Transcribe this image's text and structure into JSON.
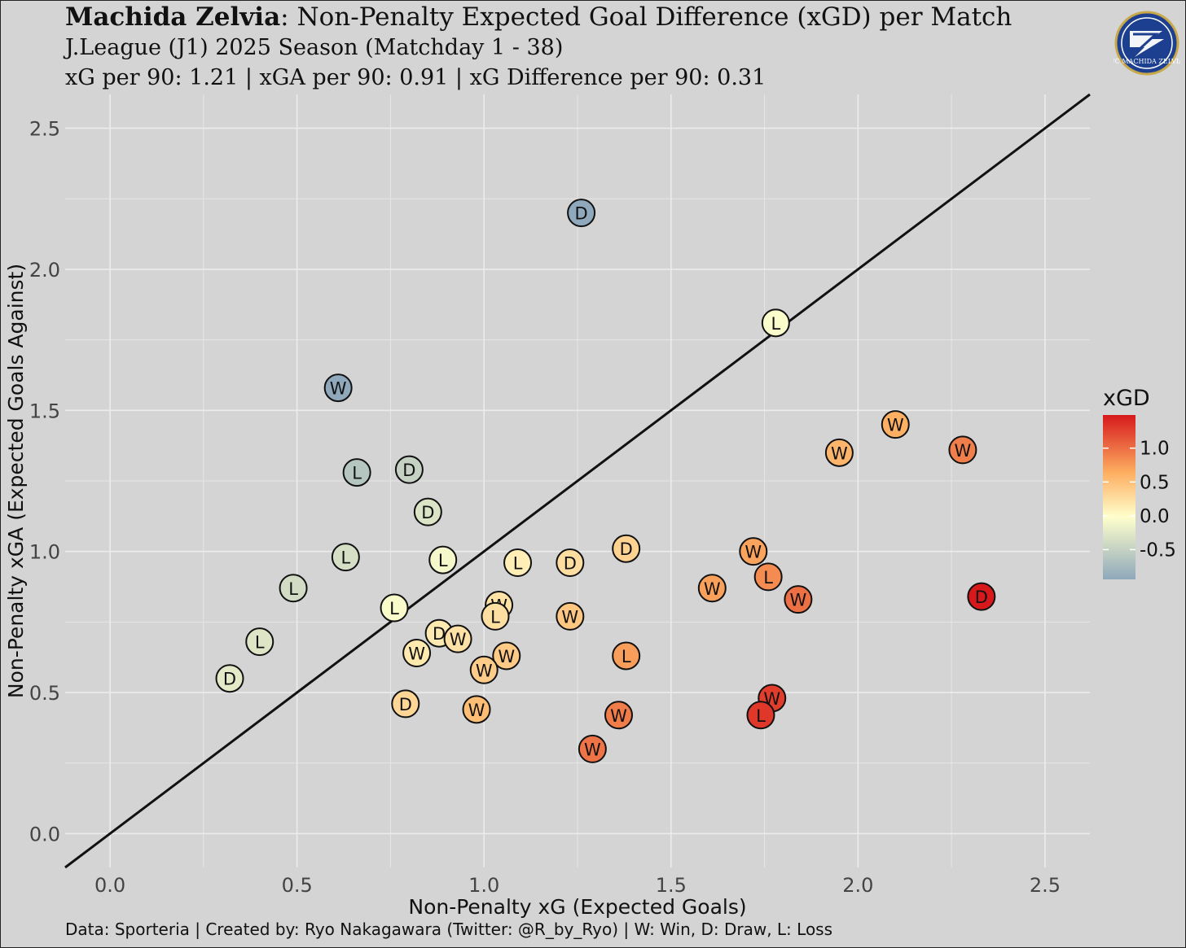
{
  "header": {
    "title_bold": "Machida Zelvia",
    "title_rest": ": Non-Penalty Expected Goal Difference (xGD) per Match",
    "subtitle": "J.League (J1) 2025 Season (Matchday 1 - 38)",
    "stats": "xG per 90: 1.21 | xGA per 90: 0.91 | xG Difference per 90: 0.31"
  },
  "caption": "Data: Sporteria | Created by: Ryo Nakagawara (Twitter: @R_by_Ryo) | W: Win, D: Draw, L: Loss",
  "logo": {
    "icon": "club-crest-icon",
    "text": "FC MACHIDA ZELVIA",
    "colors": [
      "#1c3f8f",
      "#ffffff",
      "#c9a84a"
    ]
  },
  "chart_data": {
    "type": "scatter",
    "xlabel": "Non-Penalty xG (Expected Goals)",
    "ylabel": "Non-Penalty xGA (Expected Goals Against)",
    "xlim": [
      -0.12,
      2.62
    ],
    "ylim": [
      -0.12,
      2.62
    ],
    "xticks": [
      "0.0",
      "0.5",
      "1.0",
      "1.5",
      "2.0",
      "2.5"
    ],
    "yticks": [
      "0.0",
      "0.5",
      "1.0",
      "1.5",
      "2.0",
      "2.5"
    ],
    "reference_line": "y = x",
    "grid": true,
    "legend": {
      "title": "xGD",
      "position": "right",
      "labels": [
        "1.0",
        "0.5",
        "0.0",
        "-0.5"
      ],
      "range": [
        -0.94,
        1.49
      ],
      "colors": [
        "#8fa8bb",
        "#ffffcc",
        "#fdae61",
        "#d7191c"
      ]
    },
    "points": [
      {
        "x": 1.26,
        "y": 2.2,
        "result": "D"
      },
      {
        "x": 1.78,
        "y": 1.81,
        "result": "L"
      },
      {
        "x": 0.61,
        "y": 1.58,
        "result": "W"
      },
      {
        "x": 2.1,
        "y": 1.45,
        "result": "W"
      },
      {
        "x": 1.95,
        "y": 1.35,
        "result": "W"
      },
      {
        "x": 2.28,
        "y": 1.36,
        "result": "W"
      },
      {
        "x": 0.66,
        "y": 1.28,
        "result": "L"
      },
      {
        "x": 0.8,
        "y": 1.29,
        "result": "D"
      },
      {
        "x": 0.85,
        "y": 1.14,
        "result": "D"
      },
      {
        "x": 0.63,
        "y": 0.98,
        "result": "L"
      },
      {
        "x": 0.89,
        "y": 0.97,
        "result": "L"
      },
      {
        "x": 1.09,
        "y": 0.96,
        "result": "L"
      },
      {
        "x": 1.23,
        "y": 0.96,
        "result": "D"
      },
      {
        "x": 1.38,
        "y": 1.01,
        "result": "D"
      },
      {
        "x": 1.72,
        "y": 1.0,
        "result": "W"
      },
      {
        "x": 1.76,
        "y": 0.91,
        "result": "L"
      },
      {
        "x": 1.61,
        "y": 0.87,
        "result": "W"
      },
      {
        "x": 1.84,
        "y": 0.83,
        "result": "W"
      },
      {
        "x": 2.33,
        "y": 0.84,
        "result": "D"
      },
      {
        "x": 0.49,
        "y": 0.87,
        "result": "L"
      },
      {
        "x": 0.76,
        "y": 0.8,
        "result": "L"
      },
      {
        "x": 1.04,
        "y": 0.81,
        "result": "W"
      },
      {
        "x": 1.03,
        "y": 0.77,
        "result": "L"
      },
      {
        "x": 1.23,
        "y": 0.77,
        "result": "W"
      },
      {
        "x": 0.4,
        "y": 0.68,
        "result": "L"
      },
      {
        "x": 0.88,
        "y": 0.71,
        "result": "D"
      },
      {
        "x": 0.93,
        "y": 0.69,
        "result": "W"
      },
      {
        "x": 0.82,
        "y": 0.64,
        "result": "W"
      },
      {
        "x": 1.06,
        "y": 0.63,
        "result": "W"
      },
      {
        "x": 1.0,
        "y": 0.58,
        "result": "W"
      },
      {
        "x": 1.38,
        "y": 0.63,
        "result": "L"
      },
      {
        "x": 0.32,
        "y": 0.55,
        "result": "D"
      },
      {
        "x": 1.77,
        "y": 0.48,
        "result": "W"
      },
      {
        "x": 1.74,
        "y": 0.42,
        "result": "L"
      },
      {
        "x": 0.79,
        "y": 0.46,
        "result": "D"
      },
      {
        "x": 0.98,
        "y": 0.44,
        "result": "W"
      },
      {
        "x": 1.36,
        "y": 0.42,
        "result": "W"
      },
      {
        "x": 1.29,
        "y": 0.3,
        "result": "W"
      }
    ]
  }
}
